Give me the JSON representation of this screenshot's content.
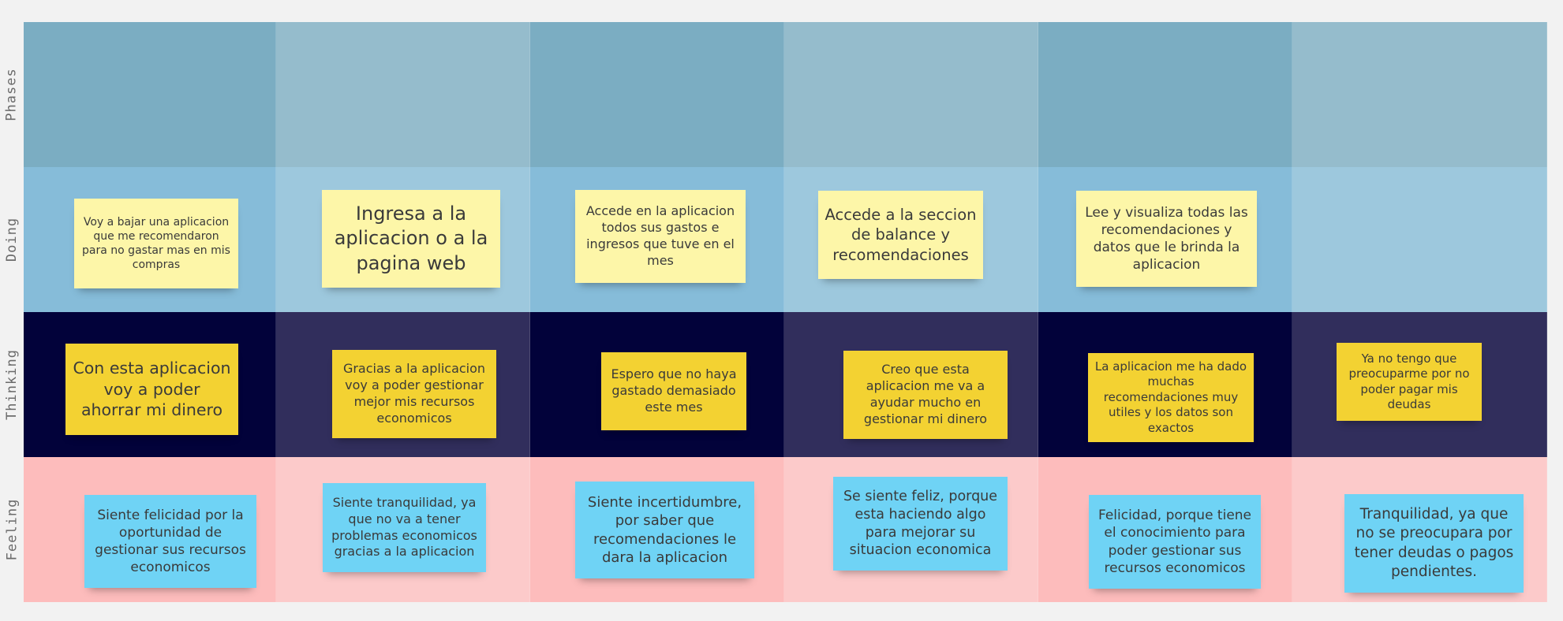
{
  "rows": {
    "phases": "Phases",
    "doing": "Doing",
    "thinking": "Thinking",
    "feeling": "Feeling"
  },
  "colors": {
    "phases_dark": "#7badc2",
    "phases_light": "#95bccc",
    "doing_dark": "#86bcd9",
    "doing_light": "#9dc8dd",
    "thinking_dark": "#02023a",
    "thinking_light": "#312e5c",
    "feeling_dark": "#fdbcbc",
    "feeling_light": "#fccaca",
    "sticky_pale_yellow": "#fdf6a8",
    "sticky_gold": "#f3d232",
    "sticky_blue": "#6fd3f5"
  },
  "doing": [
    "Voy a bajar una aplicacion que me recomendaron para no gastar mas en mis compras",
    "Ingresa a la aplicacion o a la pagina web",
    "Accede en la aplicacion todos sus gastos e ingresos que tuve en el mes",
    "Accede a la seccion de balance y recomendaciones",
    "Lee y visualiza todas las recomendaciones y datos que le brinda la aplicacion"
  ],
  "thinking": [
    "Con esta aplicacion voy a poder ahorrar mi dinero",
    "Gracias a la aplicacion voy a poder gestionar mejor mis recursos economicos",
    "Espero que no haya gastado demasiado este mes",
    "Creo que esta aplicacion me va a ayudar mucho en gestionar mi dinero",
    "La aplicacion me ha dado muchas recomendaciones muy utiles y los datos son exactos",
    "Ya no tengo que preocuparme por no poder pagar mis deudas"
  ],
  "feeling": [
    "Siente felicidad por la oportunidad de gestionar sus recursos economicos",
    "Siente tranquilidad, ya que no va a tener problemas economicos gracias a la aplicacion",
    "Siente incertidumbre, por saber que recomendaciones le dara la aplicacion",
    "Se siente feliz, porque esta haciendo algo para mejorar su situacion economica",
    "Felicidad, porque tiene el conocimiento para poder gestionar sus recursos economicos",
    "Tranquilidad, ya que no se preocupara por tener deudas o pagos pendientes."
  ]
}
